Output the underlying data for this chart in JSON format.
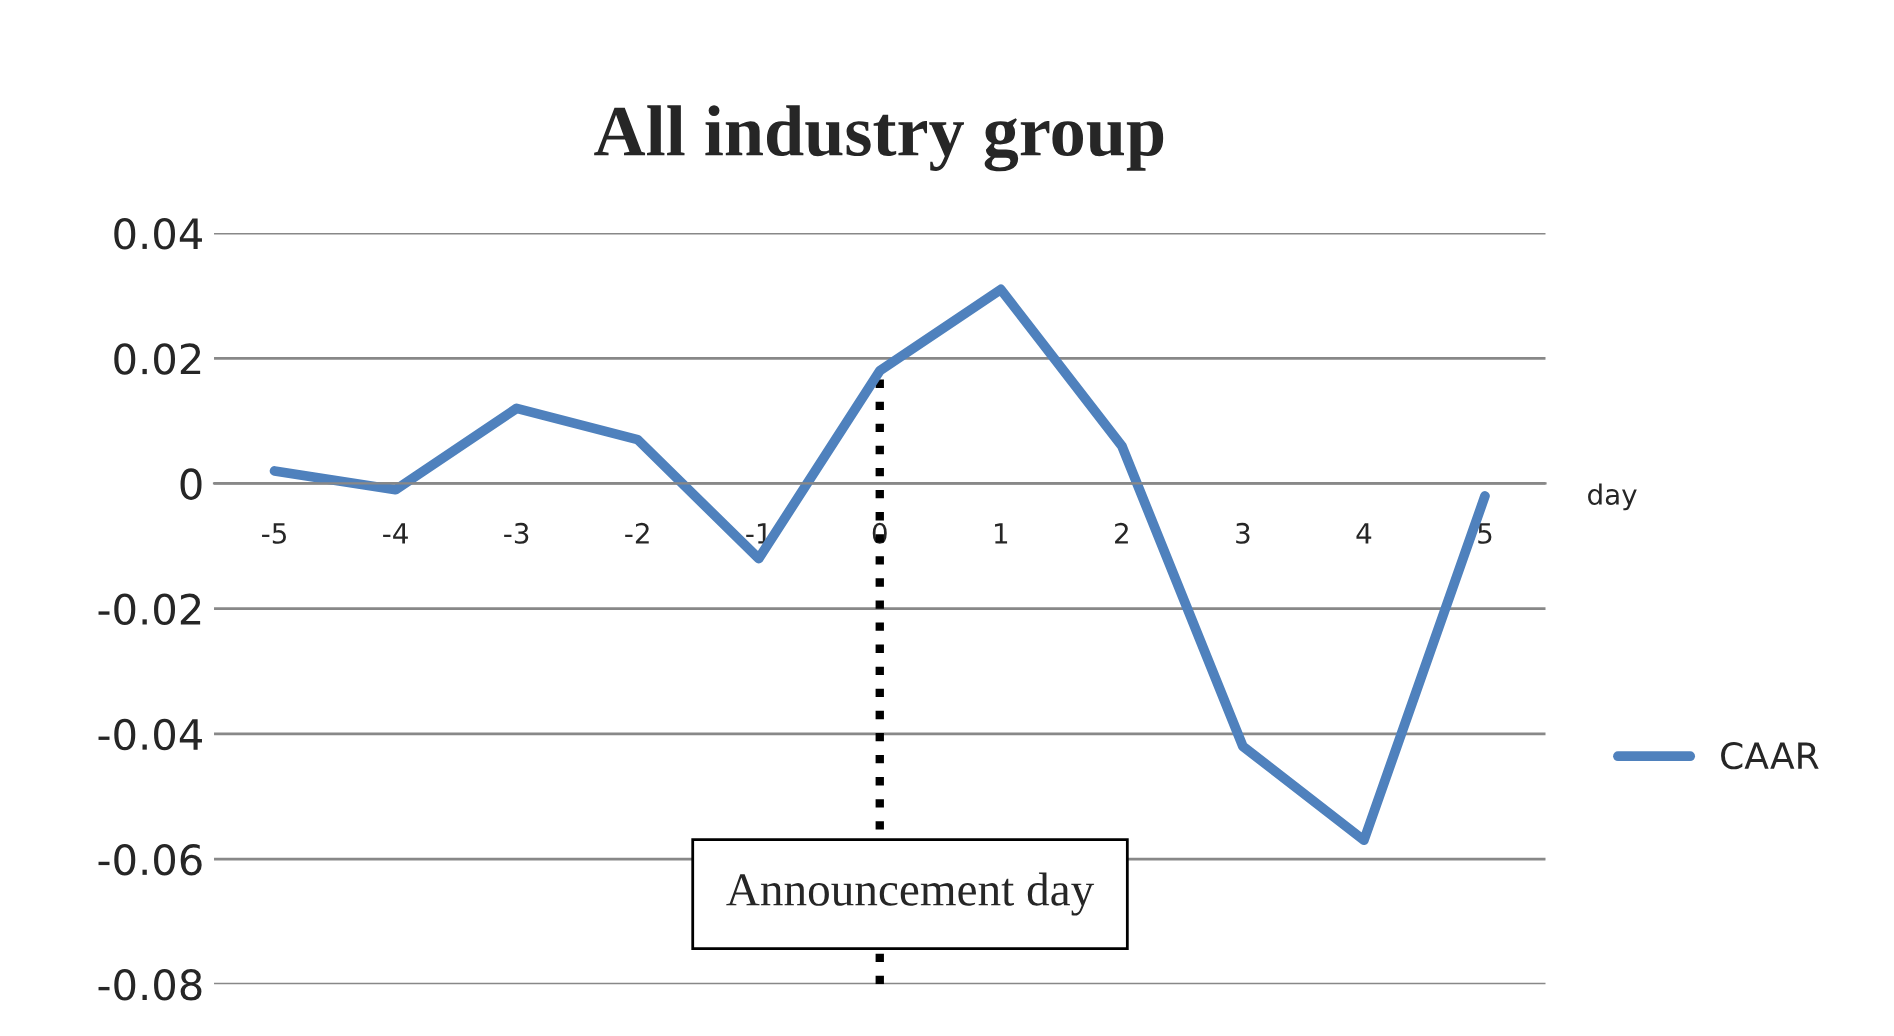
{
  "chart_data": {
    "type": "line",
    "title": "All industry group",
    "xlabel": "day",
    "categories": [
      "-5",
      "-4",
      "-3",
      "-2",
      "-1",
      "0",
      "1",
      "2",
      "3",
      "4",
      "5"
    ],
    "series": [
      {
        "name": "CAAR",
        "color": "#4f81bd",
        "values": [
          0.002,
          -0.001,
          0.012,
          0.007,
          -0.012,
          0.018,
          0.031,
          0.006,
          -0.042,
          -0.057,
          -0.002
        ]
      }
    ],
    "ylim": [
      -0.08,
      0.04
    ],
    "yticks": [
      -0.08,
      -0.06,
      -0.04,
      -0.02,
      0,
      0.02,
      0.04
    ],
    "ref_lines": [
      {
        "axis": "x",
        "value": "0",
        "label": "Announcement day",
        "line_style": "dotted",
        "color": "#000000"
      }
    ],
    "grid": "y",
    "legend": "right",
    "marker": "none",
    "line_style": "solid"
  }
}
